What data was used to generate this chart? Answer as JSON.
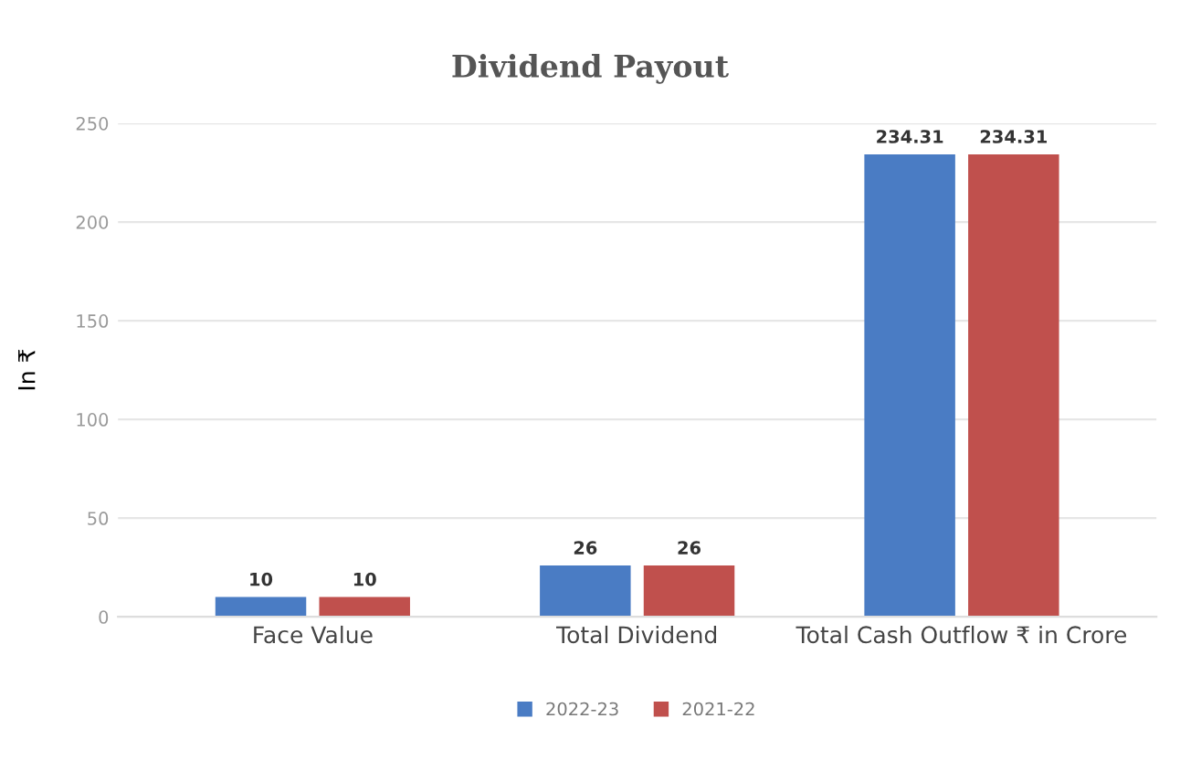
{
  "chart_data": {
    "type": "bar",
    "title": "Dividend Payout",
    "ylabel": "In ₹",
    "categories": [
      "Face Value",
      "Total Dividend",
      "Total Cash Outflow ₹ in Crore"
    ],
    "series": [
      {
        "name": "2022-23",
        "color": "#4a7cc4",
        "values": [
          10,
          26,
          234.31
        ]
      },
      {
        "name": "2021-22",
        "color": "#c0504d",
        "values": [
          10,
          26,
          234.31
        ]
      }
    ],
    "ylim": [
      0,
      250
    ],
    "yticks": [
      0,
      50,
      100,
      150,
      200,
      250
    ],
    "grid": "y",
    "legend": "bottom",
    "data_labels": true
  }
}
